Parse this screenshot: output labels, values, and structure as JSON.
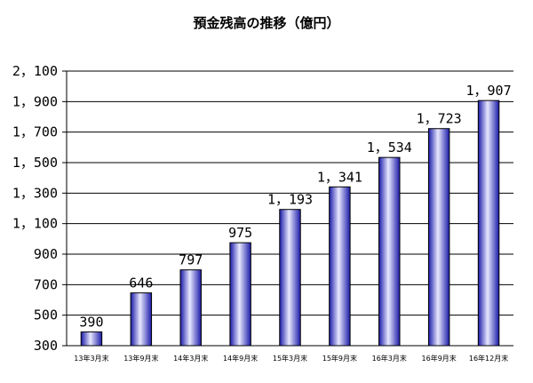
{
  "chart_data": {
    "type": "bar",
    "title": "預金残高の推移（億円）",
    "xlabel": "",
    "ylabel": "",
    "categories": [
      "13年3月末",
      "13年9月末",
      "14年3月末",
      "14年9月末",
      "15年3月末",
      "15年9月末",
      "16年3月末",
      "16年9月末",
      "16年12月末"
    ],
    "values": [
      390,
      646,
      797,
      975,
      1193,
      1341,
      1534,
      1723,
      1907
    ],
    "data_labels": [
      "390",
      "646",
      "797",
      "975",
      "1，193",
      "1，341",
      "1，534",
      "1，723",
      "1，907"
    ],
    "ylim": [
      300,
      2100
    ],
    "yticks": [
      300,
      500,
      700,
      900,
      1100,
      1300,
      1500,
      1700,
      1900,
      2100
    ],
    "ytick_labels": [
      "300",
      "500",
      "700",
      "900",
      "1，100",
      "1，300",
      "1，500",
      "1，700",
      "1，900",
      "2，100"
    ],
    "grid": true,
    "legend": "none",
    "colors": {
      "bar_dark": "#1a1aa8",
      "bar_light": "#e8e8ff",
      "grid": "#000000",
      "axis": "#000000"
    }
  }
}
